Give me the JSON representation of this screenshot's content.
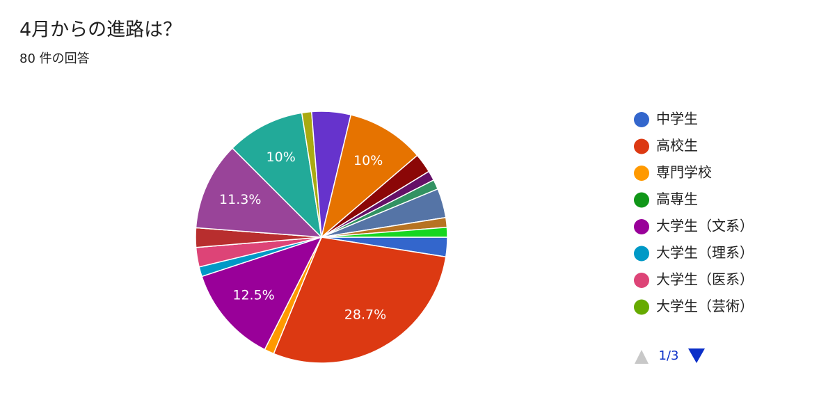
{
  "chart_data": {
    "type": "pie",
    "title": "4月からの進路は？",
    "subtitle": "80 件の回答",
    "categories": [
      "中学生",
      "高校生",
      "専門学校",
      "高専生",
      "大学生（文系）",
      "大学生（理系）",
      "大学生（医系）",
      "大学生（芸術）",
      null,
      null,
      null,
      null,
      null,
      null,
      null,
      null,
      null,
      null,
      null,
      null,
      null,
      null
    ],
    "values": [
      2.5,
      28.7,
      1.25,
      0,
      12.5,
      1.25,
      2.5,
      0,
      2.5,
      0,
      11.3,
      10,
      1.25,
      5,
      10,
      2.5,
      1.25,
      1.25,
      3.75,
      0,
      1.25,
      1.25
    ],
    "value_labels": [
      null,
      "28.7%",
      null,
      null,
      "12.5%",
      null,
      null,
      null,
      null,
      null,
      "11.3%",
      "10%",
      null,
      null,
      "10%",
      null,
      null,
      null,
      null,
      null,
      null,
      null
    ],
    "colors": [
      "#3366cc",
      "#dc3912",
      "#ff9900",
      "#109618",
      "#990099",
      "#0099c6",
      "#dd4477",
      "#66aa00",
      "#b82e2e",
      "#316395",
      "#994499",
      "#22aa99",
      "#aaaa11",
      "#6633cc",
      "#e67300",
      "#8b0707",
      "#651067",
      "#329262",
      "#5574a6",
      "#3b3eac",
      "#b77322",
      "#16d620"
    ],
    "legend_page": "1/3"
  }
}
